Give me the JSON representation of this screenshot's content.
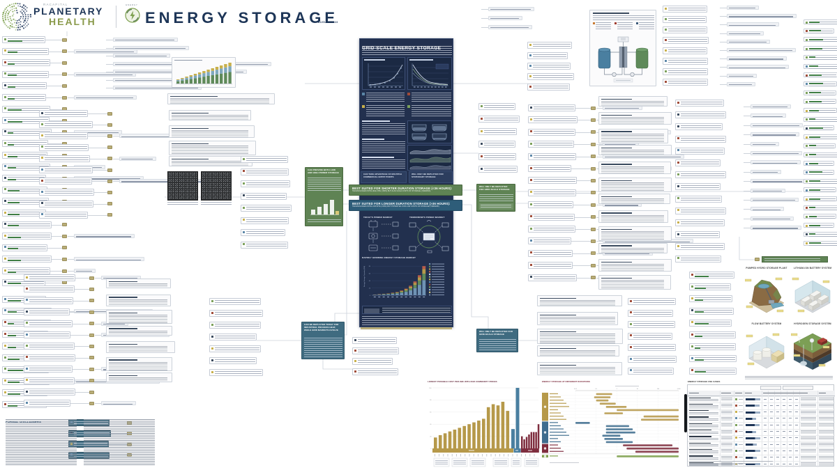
{
  "note": "Recreation of RA Capital Planetary Health 'Energy Storage' infographic poster. Micro-text of the hundreds of mind-map nodes and paragraphs is illegible at source resolution and is rendered as placeholder line-art.",
  "header": {
    "brand_top": "RACAPITAL",
    "brand_main": "PLANETARY",
    "brand_sub": "HEALTH",
    "kicker": "ENERGY",
    "title": "ENERGY STORAGE",
    "date": "AUGUST 2023"
  },
  "central": {
    "title": "GRID-SCALE ENERGY STORAGE",
    "today": "TODAY'S POWER MARKET",
    "tomorrow": "TOMORROW'S POWER MARKET",
    "growth_title": "RAPIDLY GROWING ENERGY STORAGE MARKET"
  },
  "banners": {
    "shorter": {
      "title": "BEST SUITED FOR SHORTER DURATION STORAGE (<36 HOURS):",
      "subtitle": "TECHNOLOGIES WITH HIGH RTE (>80%) BUT ALSO HIGH COSTS OF STORAGE (>$30/kWh)"
    },
    "longer": {
      "title": "BEST SUITED FOR LONGER DURATION STORAGE (>36 HOURS):",
      "subtitle": "TECHNOLOGIES WITH LOW RTE (<60%) BUT POTENTIAL FOR LOW COSTS OF STORAGE (<$30/kWh)"
    }
  },
  "callouts": {
    "multi_entry": "CAN TAKE ADVANTAGE OF MULTIPLE COMMERCIAL ENTRY POINTS",
    "stationary_only": "WILL ONLY BE DEPLOYED FOR STATIONARY STORAGE",
    "left_green": "CAN PROVIDE BOTH LOW AND HIGH POWER STORAGE",
    "left_teal": "CAN BE DEPLOYED TODAY FOR INDUSTRIAL PROCESS HEAT, WHILE GRID MARKETS EVOLVE",
    "right_green": "WILL ONLY BE DEPLOYED FOR GRID-SCALE STORAGE",
    "right_teal": "WILL ONLY BE DEPLOYED FOR GRID-SCALE STORAGE"
  },
  "iso": [
    {
      "title": "PUMPED HYDRO STORAGE PLANT"
    },
    {
      "title": "LITHIUM-ION BATTERY SYSTEM"
    },
    {
      "title": "FLOW BATTERY SYSTEM"
    },
    {
      "title": "HYDROGEN STORAGE SYSTEM"
    }
  ],
  "bottom": {
    "disclaimers_title": "FORMAL DISCLAIMERS",
    "cost_title": "LOWEST POSSIBLE COST PER kWh WITH 2022 COMMODITY PRICES",
    "durations_title": "ENERGY STORAGE AT DIFFERENT DURATIONS",
    "usecases_title": "ENERGY STORAGE USE CASES"
  },
  "colors": {
    "navy": "#1d3557",
    "panel_navy": "#22304e",
    "olive_green": "#8a9a4b",
    "banner_green": "#5f8354",
    "banner_blue": "#2e5d79",
    "gold": "#b6994a",
    "maroon": "#7e2d3e",
    "bar_blue": "#4a7fa0",
    "gantt_green": "#7ea04d",
    "tan_node": "#b9ad77"
  },
  "chart_data": [
    {
      "type": "stacked-bar",
      "title": "RAPIDLY GROWING ENERGY STORAGE MARKET",
      "ylabel": "Energy Storage Capacity (GW)",
      "categories": [
        "2019",
        "2020",
        "2021",
        "2022",
        "2023",
        "2024",
        "2025",
        "2026",
        "2027",
        "2028",
        "2029",
        "2030"
      ],
      "totals": [
        2,
        3,
        4,
        5,
        7,
        9,
        13,
        18,
        26,
        38,
        55,
        80
      ],
      "ylim": [
        0,
        90
      ],
      "legend_position": "right",
      "note": "Exponentially growing stacked bars; year and series legend microtext illegible at source resolution (values estimated)."
    },
    {
      "type": "bar",
      "title": "LOWEST POSSIBLE COST PER kWh WITH 2022 COMMODITY PRICES",
      "ylabel": "$/kWh",
      "ylim": [
        0,
        100
      ],
      "groups": [
        {
          "color": "#b6994a",
          "values": [
            18,
            22,
            25,
            28,
            31,
            34,
            37,
            40,
            43,
            46,
            49,
            68,
            73,
            71,
            77,
            62
          ]
        },
        {
          "color": "#4a7fa0",
          "values": [
            32,
            100
          ]
        },
        {
          "color": "#7e2d3e",
          "values": [
            20,
            15,
            19,
            23,
            27,
            27,
            27,
            40
          ]
        }
      ],
      "note": "Gold, blue and maroon technology groups; rotated category labels illegible at source resolution (values estimated from bar heights)."
    },
    {
      "type": "gantt",
      "title": "ENERGY STORAGE AT DIFFERENT DURATIONS",
      "x_axis": {
        "scale": "log",
        "unit": "hours",
        "min": 0.01,
        "max": 1000
      },
      "groups": [
        {
          "color": "#b6994a",
          "rows": [
            [
              0.1,
              0.6
            ],
            [
              0.08,
              0.5
            ],
            [
              0.1,
              0.4
            ],
            [
              0.15,
              0.9
            ],
            [
              0.3,
              3
            ],
            [
              1,
              1000
            ],
            [
              0.25,
              2
            ],
            [
              20,
              1000
            ],
            [
              15,
              1000
            ]
          ]
        },
        {
          "color": "#3f6d8e",
          "rows": [
            [
              0.01,
              0.05
            ],
            [
              0.3,
              4
            ],
            [
              0.3,
              6
            ],
            [
              0.3,
              8
            ],
            [
              0.2,
              1.5
            ],
            [
              0.25,
              2
            ],
            [
              0.3,
              6
            ]
          ]
        },
        {
          "color": "#7e2d3e",
          "rows": [
            [
              2,
              500
            ],
            [
              3,
              1000
            ],
            [
              8,
              1000
            ]
          ]
        },
        {
          "color": "#7ea04d",
          "rows": [
            [
              1,
              1000
            ]
          ]
        }
      ],
      "note": "Row technology labels illegible at source resolution (durations estimated)."
    }
  ]
}
